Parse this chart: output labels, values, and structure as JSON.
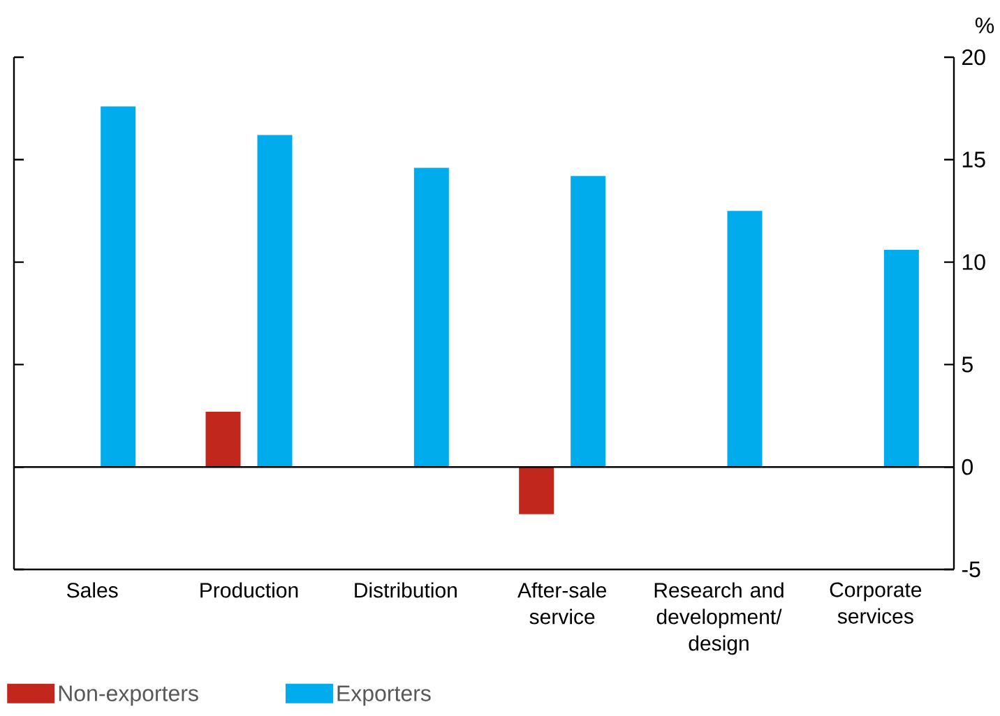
{
  "chart_data": {
    "type": "bar",
    "ylabel": "%",
    "categories": [
      "Sales",
      "Production",
      "Distribution",
      "After-sale service",
      "Research and development/ design",
      "Corporate services"
    ],
    "series": [
      {
        "name": "Non-exporters",
        "color": "#c1271d",
        "values": [
          null,
          2.7,
          null,
          -2.3,
          null,
          null
        ]
      },
      {
        "name": "Exporters",
        "color": "#00acec",
        "values": [
          17.6,
          16.2,
          14.6,
          14.2,
          12.5,
          10.6
        ]
      }
    ],
    "ylim": [
      -5,
      20
    ],
    "yticks": [
      -5,
      0,
      5,
      10,
      15,
      20
    ],
    "ref_lines": [
      {
        "axis": "y",
        "value": 0,
        "color": "#000000"
      }
    ],
    "legend": "bottom left"
  }
}
